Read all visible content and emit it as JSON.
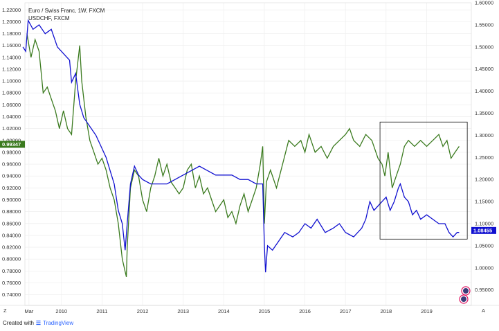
{
  "chart_data": {
    "type": "line",
    "title": "Euro / Swiss Franc, 1W, FXCM",
    "subtitle": "USDCHF, FXCM",
    "x_ticks": [
      "Mar",
      "2010",
      "2011",
      "2012",
      "2013",
      "2014",
      "2015",
      "2016",
      "2017",
      "2018",
      "2019"
    ],
    "x_range": [
      2009.1,
      2020.1
    ],
    "left_axis": {
      "range": [
        0.722,
        1.232
      ],
      "ticks": [
        "1.22000",
        "1.20000",
        "1.18000",
        "1.16000",
        "1.14000",
        "1.12000",
        "1.10000",
        "1.08000",
        "1.06000",
        "1.04000",
        "1.02000",
        "1.00000",
        "0.98000",
        "0.96000",
        "0.94000",
        "0.92000",
        "0.90000",
        "0.88000",
        "0.86000",
        "0.84000",
        "0.82000",
        "0.80000",
        "0.78000",
        "0.76000",
        "0.74000"
      ],
      "last_value": "0.99347"
    },
    "right_axis": {
      "range": [
        0.915,
        1.6
      ],
      "ticks": [
        "1.60000",
        "1.55000",
        "1.50000",
        "1.45000",
        "1.40000",
        "1.35000",
        "1.30000",
        "1.25000",
        "1.20000",
        "1.15000",
        "1.10000",
        "1.05000",
        "1.00000",
        "0.95000"
      ],
      "last_value": "1.08455"
    },
    "series": [
      {
        "name": "Euro / Swiss Franc",
        "axis": "left",
        "color": "#3a7a1e",
        "points": [
          [
            2009.15,
            1.18
          ],
          [
            2009.25,
            1.14
          ],
          [
            2009.35,
            1.17
          ],
          [
            2009.45,
            1.15
          ],
          [
            2009.55,
            1.08
          ],
          [
            2009.65,
            1.09
          ],
          [
            2009.75,
            1.07
          ],
          [
            2009.85,
            1.05
          ],
          [
            2009.95,
            1.02
          ],
          [
            2010.05,
            1.05
          ],
          [
            2010.15,
            1.02
          ],
          [
            2010.25,
            1.01
          ],
          [
            2010.35,
            1.1
          ],
          [
            2010.45,
            1.16
          ],
          [
            2010.5,
            1.1
          ],
          [
            2010.6,
            1.04
          ],
          [
            2010.7,
            1.0
          ],
          [
            2010.8,
            0.98
          ],
          [
            2010.9,
            0.96
          ],
          [
            2011.0,
            0.97
          ],
          [
            2011.1,
            0.95
          ],
          [
            2011.2,
            0.92
          ],
          [
            2011.3,
            0.9
          ],
          [
            2011.4,
            0.86
          ],
          [
            2011.5,
            0.8
          ],
          [
            2011.6,
            0.77
          ],
          [
            2011.62,
            0.82
          ],
          [
            2011.7,
            0.92
          ],
          [
            2011.8,
            0.95
          ],
          [
            2011.9,
            0.94
          ],
          [
            2012.0,
            0.9
          ],
          [
            2012.1,
            0.88
          ],
          [
            2012.2,
            0.92
          ],
          [
            2012.3,
            0.94
          ],
          [
            2012.4,
            0.97
          ],
          [
            2012.5,
            0.94
          ],
          [
            2012.6,
            0.96
          ],
          [
            2012.7,
            0.93
          ],
          [
            2012.8,
            0.92
          ],
          [
            2012.9,
            0.91
          ],
          [
            2013.0,
            0.92
          ],
          [
            2013.1,
            0.95
          ],
          [
            2013.2,
            0.96
          ],
          [
            2013.3,
            0.92
          ],
          [
            2013.4,
            0.94
          ],
          [
            2013.5,
            0.91
          ],
          [
            2013.6,
            0.92
          ],
          [
            2013.7,
            0.9
          ],
          [
            2013.8,
            0.88
          ],
          [
            2013.9,
            0.89
          ],
          [
            2014.0,
            0.9
          ],
          [
            2014.1,
            0.87
          ],
          [
            2014.2,
            0.88
          ],
          [
            2014.3,
            0.86
          ],
          [
            2014.4,
            0.89
          ],
          [
            2014.5,
            0.91
          ],
          [
            2014.6,
            0.88
          ],
          [
            2014.7,
            0.9
          ],
          [
            2014.8,
            0.92
          ],
          [
            2014.9,
            0.96
          ],
          [
            2014.96,
            0.99
          ],
          [
            2015.0,
            0.86
          ],
          [
            2015.05,
            0.93
          ],
          [
            2015.15,
            0.95
          ],
          [
            2015.3,
            0.92
          ],
          [
            2015.45,
            0.96
          ],
          [
            2015.6,
            1.0
          ],
          [
            2015.75,
            0.99
          ],
          [
            2015.9,
            1.0
          ],
          [
            2016.0,
            0.98
          ],
          [
            2016.1,
            1.01
          ],
          [
            2016.25,
            0.98
          ],
          [
            2016.4,
            0.99
          ],
          [
            2016.55,
            0.97
          ],
          [
            2016.7,
            0.99
          ],
          [
            2016.85,
            1.0
          ],
          [
            2017.0,
            1.01
          ],
          [
            2017.1,
            1.02
          ],
          [
            2017.2,
            1.0
          ],
          [
            2017.35,
            0.99
          ],
          [
            2017.5,
            1.01
          ],
          [
            2017.65,
            1.0
          ],
          [
            2017.8,
            0.97
          ],
          [
            2017.9,
            0.96
          ],
          [
            2017.97,
            0.94
          ],
          [
            2018.05,
            0.98
          ],
          [
            2018.15,
            0.92
          ],
          [
            2018.25,
            0.94
          ],
          [
            2018.35,
            0.96
          ],
          [
            2018.45,
            0.99
          ],
          [
            2018.55,
            1.0
          ],
          [
            2018.7,
            0.99
          ],
          [
            2018.85,
            1.0
          ],
          [
            2019.0,
            0.99
          ],
          [
            2019.15,
            1.0
          ],
          [
            2019.3,
            1.01
          ],
          [
            2019.4,
            0.99
          ],
          [
            2019.5,
            1.0
          ],
          [
            2019.6,
            0.97
          ],
          [
            2019.7,
            0.98
          ],
          [
            2019.8,
            0.99
          ]
        ]
      },
      {
        "name": "USDCHF, FXCM",
        "axis": "right",
        "color": "#1010d0",
        "points": [
          [
            2009.05,
            1.5
          ],
          [
            2009.12,
            1.49
          ],
          [
            2009.18,
            1.56
          ],
          [
            2009.3,
            1.54
          ],
          [
            2009.45,
            1.55
          ],
          [
            2009.6,
            1.53
          ],
          [
            2009.75,
            1.54
          ],
          [
            2009.9,
            1.5
          ],
          [
            2010.0,
            1.49
          ],
          [
            2010.1,
            1.48
          ],
          [
            2010.2,
            1.47
          ],
          [
            2010.25,
            1.42
          ],
          [
            2010.35,
            1.44
          ],
          [
            2010.45,
            1.37
          ],
          [
            2010.55,
            1.34
          ],
          [
            2010.7,
            1.32
          ],
          [
            2010.85,
            1.3
          ],
          [
            2011.0,
            1.27
          ],
          [
            2011.1,
            1.25
          ],
          [
            2011.2,
            1.22
          ],
          [
            2011.3,
            1.19
          ],
          [
            2011.4,
            1.13
          ],
          [
            2011.5,
            1.1
          ],
          [
            2011.57,
            1.04
          ],
          [
            2011.62,
            1.1
          ],
          [
            2011.7,
            1.19
          ],
          [
            2011.8,
            1.23
          ],
          [
            2011.9,
            1.21
          ],
          [
            2012.0,
            1.2
          ],
          [
            2012.2,
            1.19
          ],
          [
            2012.4,
            1.19
          ],
          [
            2012.6,
            1.19
          ],
          [
            2012.8,
            1.2
          ],
          [
            2013.0,
            1.21
          ],
          [
            2013.2,
            1.22
          ],
          [
            2013.4,
            1.23
          ],
          [
            2013.6,
            1.22
          ],
          [
            2013.8,
            1.21
          ],
          [
            2014.0,
            1.21
          ],
          [
            2014.2,
            1.21
          ],
          [
            2014.4,
            1.2
          ],
          [
            2014.6,
            1.2
          ],
          [
            2014.8,
            1.19
          ],
          [
            2014.96,
            1.19
          ],
          [
            2015.0,
            1.05
          ],
          [
            2015.03,
            0.99
          ],
          [
            2015.08,
            1.05
          ],
          [
            2015.2,
            1.04
          ],
          [
            2015.35,
            1.06
          ],
          [
            2015.5,
            1.08
          ],
          [
            2015.7,
            1.07
          ],
          [
            2015.85,
            1.08
          ],
          [
            2016.0,
            1.1
          ],
          [
            2016.15,
            1.09
          ],
          [
            2016.3,
            1.11
          ],
          [
            2016.5,
            1.08
          ],
          [
            2016.7,
            1.09
          ],
          [
            2016.85,
            1.1
          ],
          [
            2017.0,
            1.08
          ],
          [
            2017.2,
            1.07
          ],
          [
            2017.4,
            1.09
          ],
          [
            2017.5,
            1.11
          ],
          [
            2017.6,
            1.15
          ],
          [
            2017.7,
            1.13
          ],
          [
            2017.8,
            1.14
          ],
          [
            2017.9,
            1.15
          ],
          [
            2018.0,
            1.16
          ],
          [
            2018.1,
            1.13
          ],
          [
            2018.2,
            1.15
          ],
          [
            2018.3,
            1.18
          ],
          [
            2018.35,
            1.19
          ],
          [
            2018.45,
            1.16
          ],
          [
            2018.55,
            1.15
          ],
          [
            2018.65,
            1.12
          ],
          [
            2018.75,
            1.13
          ],
          [
            2018.85,
            1.11
          ],
          [
            2019.0,
            1.12
          ],
          [
            2019.15,
            1.11
          ],
          [
            2019.3,
            1.1
          ],
          [
            2019.45,
            1.1
          ],
          [
            2019.55,
            1.08
          ],
          [
            2019.65,
            1.07
          ],
          [
            2019.75,
            1.08
          ],
          [
            2019.8,
            1.08
          ]
        ]
      }
    ],
    "annotation_box": {
      "x": [
        2017.85,
        2020.0
      ],
      "y_right": [
        1.065,
        1.33
      ]
    },
    "grid": true,
    "legend": "top-left"
  },
  "corner_left": "Z",
  "corner_right": "A",
  "footer": {
    "created_with": "Created with",
    "brand": "TradingView"
  }
}
